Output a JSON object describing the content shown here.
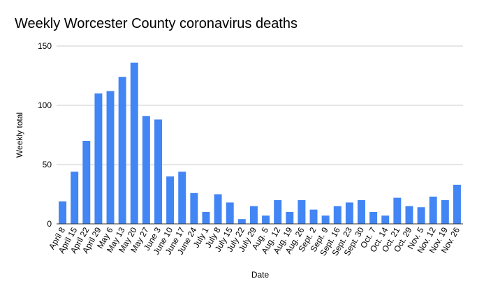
{
  "chart_data": {
    "type": "bar",
    "title": "Weekly Worcester County coronavirus deaths",
    "xlabel": "Date",
    "ylabel": "Weekly total",
    "ylim": [
      0,
      150
    ],
    "yticks": [
      "0",
      "50",
      "100",
      "150"
    ],
    "grid": true,
    "legend": "none",
    "colors": {
      "bar": "#4285f4",
      "grid": "#cccccc",
      "axis": "#333333"
    },
    "categories": [
      "April 8",
      "April 15",
      "April 22",
      "April 29",
      "May 6",
      "May 13",
      "May 20",
      "May 27",
      "June 3",
      "June 10",
      "June 17",
      "June 24",
      "July 1",
      "July 8",
      "July 15",
      "July 22",
      "July 29",
      "Aug. 5",
      "Aug. 12",
      "Aug. 19",
      "Aug. 26",
      "Sept. 2",
      "Sept. 9",
      "Sept. 16",
      "Sept. 23",
      "Sept. 30",
      "Oct. 7",
      "Oct. 14",
      "Oct. 21",
      "Oct. 29",
      "Nov. 5",
      "Nov. 12",
      "Nov. 19",
      "Nov. 26"
    ],
    "values": [
      19,
      44,
      70,
      110,
      112,
      124,
      136,
      91,
      88,
      40,
      44,
      26,
      10,
      25,
      18,
      4,
      15,
      7,
      20,
      10,
      20,
      12,
      7,
      15,
      18,
      20,
      10,
      7,
      22,
      15,
      14,
      23,
      20,
      33
    ]
  }
}
